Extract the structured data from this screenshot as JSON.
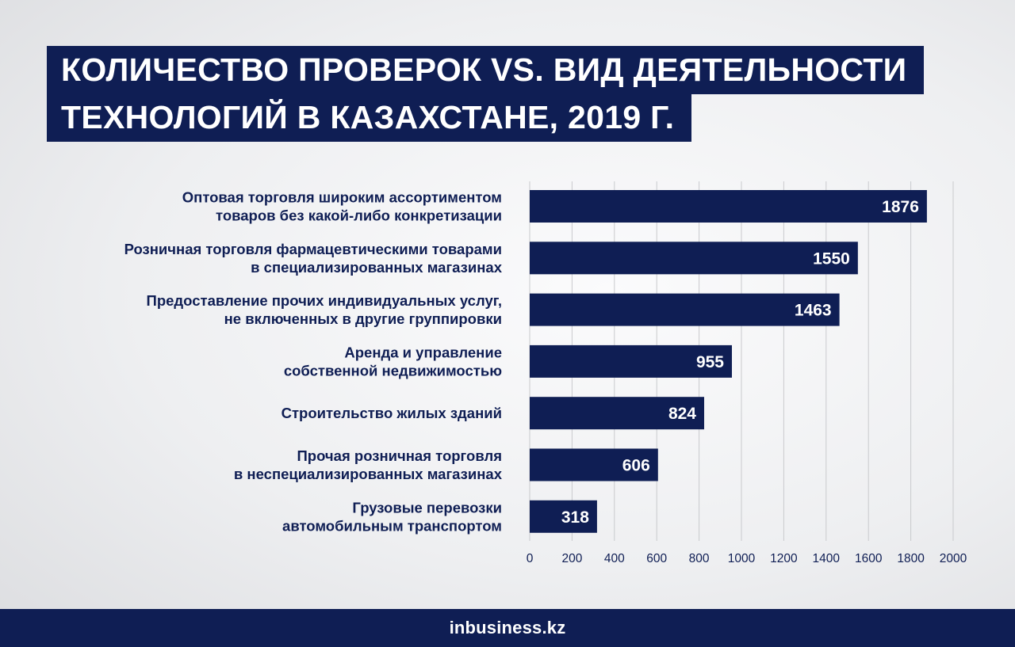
{
  "title": {
    "line1": "КОЛИЧЕСТВО ПРОВЕРОК VS. ВИД ДЕЯТЕЛЬНОСТИ",
    "line2": "ТЕХНОЛОГИЙ В КАЗАХСТАНЕ, 2019 Г."
  },
  "chart_data": {
    "type": "bar",
    "orientation": "horizontal",
    "categories": [
      [
        "Оптовая торговля широким ассортиментом",
        "товаров без какой-либо конкретизации"
      ],
      [
        "Розничная торговля фармацевтическими товарами",
        "в специализированных магазинах"
      ],
      [
        "Предоставление прочих индивидуальных услуг,",
        "не включенных в другие группировки"
      ],
      [
        "Аренда и управление",
        "собственной недвижимостью"
      ],
      [
        "Строительство жилых зданий"
      ],
      [
        "Прочая розничная торговля",
        "в неспециализированных магазинах"
      ],
      [
        "Грузовые перевозки",
        "автомобильным транспортом"
      ]
    ],
    "values": [
      1876,
      1550,
      1463,
      955,
      824,
      606,
      318
    ],
    "xlim": [
      0,
      2000
    ],
    "xticks": [
      0,
      200,
      400,
      600,
      800,
      1000,
      1200,
      1400,
      1600,
      1800,
      2000
    ],
    "grid": true,
    "data_labels": true
  },
  "colors": {
    "bar": "#0f1e54",
    "grid": "#c9cacd",
    "text": "#0f1e54"
  },
  "footer": {
    "logo": "inbusiness.kz"
  }
}
